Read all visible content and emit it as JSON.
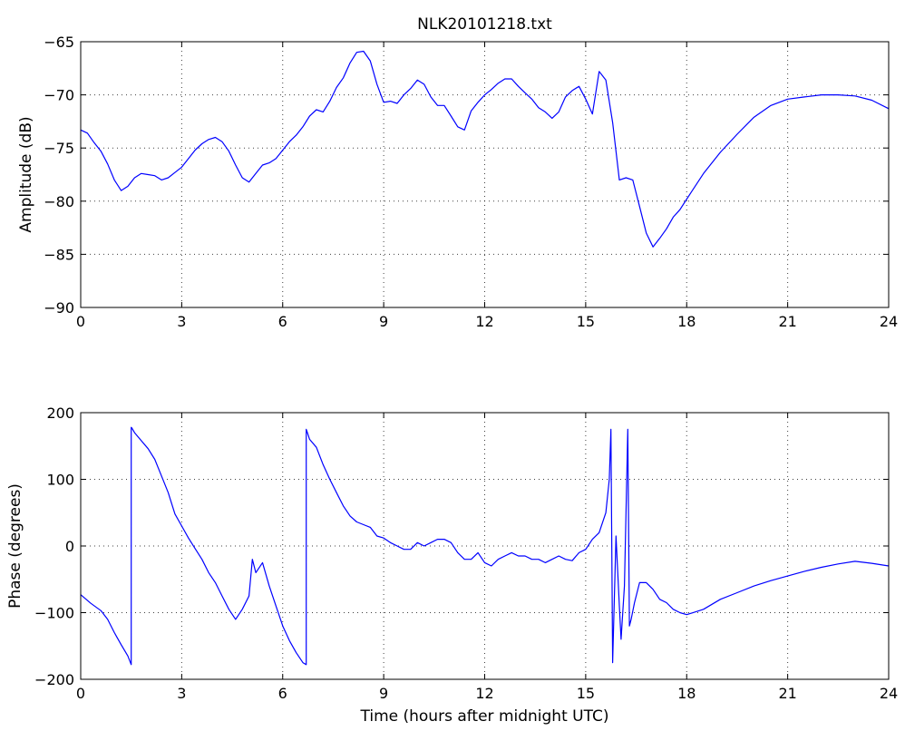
{
  "chart_data": [
    {
      "type": "line",
      "title": "NLK20101218.txt",
      "xlabel": "",
      "ylabel": "Amplitude (dB)",
      "xlim": [
        0,
        24
      ],
      "ylim": [
        -90,
        -65
      ],
      "xticks": [
        0,
        3,
        6,
        9,
        12,
        15,
        18,
        21,
        24
      ],
      "yticks": [
        -90,
        -85,
        -80,
        -75,
        -70,
        -65
      ],
      "grid": true,
      "color": "#0000ff",
      "series": [
        {
          "x": [
            0,
            0.2,
            0.4,
            0.6,
            0.8,
            1.0,
            1.2,
            1.4,
            1.6,
            1.8,
            2.0,
            2.2,
            2.4,
            2.6,
            2.8,
            3.0,
            3.2,
            3.4,
            3.6,
            3.8,
            4.0,
            4.2,
            4.4,
            4.6,
            4.8,
            5.0,
            5.2,
            5.4,
            5.6,
            5.8,
            6.0,
            6.2,
            6.4,
            6.6,
            6.8,
            7.0,
            7.2,
            7.4,
            7.6,
            7.8,
            8.0,
            8.2,
            8.4,
            8.6,
            8.8,
            9.0,
            9.2,
            9.4,
            9.6,
            9.8,
            10.0,
            10.2,
            10.4,
            10.6,
            10.8,
            11.0,
            11.2,
            11.4,
            11.6,
            11.8,
            12.0,
            12.2,
            12.4,
            12.6,
            12.8,
            13.0,
            13.2,
            13.4,
            13.6,
            13.8,
            14.0,
            14.2,
            14.4,
            14.6,
            14.8,
            15.0,
            15.2,
            15.4,
            15.6,
            15.8,
            16.0,
            16.2,
            16.4,
            16.6,
            16.8,
            17.0,
            17.2,
            17.4,
            17.6,
            17.8,
            18.0,
            18.5,
            19.0,
            19.5,
            20.0,
            20.5,
            21.0,
            21.5,
            22.0,
            22.5,
            23.0,
            23.5,
            24.0
          ],
          "y": [
            -73.3,
            -73.6,
            -74.5,
            -75.3,
            -76.5,
            -78.0,
            -79.0,
            -78.6,
            -77.8,
            -77.4,
            -77.5,
            -77.6,
            -78.0,
            -77.8,
            -77.3,
            -76.8,
            -76.0,
            -75.2,
            -74.6,
            -74.2,
            -74.0,
            -74.4,
            -75.3,
            -76.6,
            -77.8,
            -78.2,
            -77.4,
            -76.6,
            -76.4,
            -76.0,
            -75.2,
            -74.4,
            -73.8,
            -73.0,
            -72.0,
            -71.4,
            -71.6,
            -70.6,
            -69.3,
            -68.4,
            -67.0,
            -66.0,
            -65.9,
            -66.8,
            -69.0,
            -70.7,
            -70.6,
            -70.8,
            -70.0,
            -69.4,
            -68.6,
            -69.0,
            -70.2,
            -71.0,
            -71.0,
            -72.0,
            -73.0,
            -73.3,
            -71.5,
            -70.7,
            -70.0,
            -69.5,
            -68.9,
            -68.5,
            -68.5,
            -69.2,
            -69.8,
            -70.4,
            -71.2,
            -71.6,
            -72.2,
            -71.6,
            -70.2,
            -69.6,
            -69.2,
            -70.4,
            -71.8,
            -67.8,
            -68.6,
            -72.6,
            -78.0,
            -77.8,
            -78.0,
            -80.5,
            -83.0,
            -84.3,
            -83.5,
            -82.6,
            -81.5,
            -80.8,
            -79.8,
            -77.4,
            -75.4,
            -73.7,
            -72.1,
            -71.0,
            -70.4,
            -70.2,
            -70.0,
            -70.0,
            -70.1,
            -70.5,
            -71.3
          ]
        }
      ]
    },
    {
      "type": "line",
      "title": "",
      "xlabel": "Time (hours after midnight UTC)",
      "ylabel": "Phase (degrees)",
      "xlim": [
        0,
        24
      ],
      "ylim": [
        -200,
        200
      ],
      "xticks": [
        0,
        3,
        6,
        9,
        12,
        15,
        18,
        21,
        24
      ],
      "yticks": [
        -200,
        -100,
        0,
        100,
        200
      ],
      "grid": true,
      "color": "#0000ff",
      "series": [
        {
          "x": [
            0,
            0.3,
            0.6,
            0.8,
            1.0,
            1.2,
            1.4,
            1.5,
            1.5,
            1.52,
            1.6,
            1.8,
            2.0,
            2.2,
            2.4,
            2.6,
            2.8,
            3.0,
            3.2,
            3.4,
            3.6,
            3.8,
            4.0,
            4.2,
            4.4,
            4.6,
            4.8,
            5.0,
            5.1,
            5.2,
            5.4,
            5.6,
            5.8,
            6.0,
            6.2,
            6.4,
            6.6,
            6.7,
            6.7,
            6.72,
            6.8,
            7.0,
            7.2,
            7.4,
            7.6,
            7.8,
            8.0,
            8.2,
            8.4,
            8.6,
            8.8,
            9.0,
            9.2,
            9.4,
            9.6,
            9.8,
            10.0,
            10.2,
            10.4,
            10.6,
            10.8,
            11.0,
            11.2,
            11.4,
            11.6,
            11.8,
            12.0,
            12.2,
            12.4,
            12.6,
            12.8,
            13.0,
            13.2,
            13.4,
            13.6,
            13.8,
            14.0,
            14.2,
            14.4,
            14.6,
            14.8,
            15.0,
            15.2,
            15.4,
            15.6,
            15.7,
            15.75,
            15.8,
            15.9,
            16.0,
            16.05,
            16.15,
            16.25,
            16.3,
            16.35,
            16.45,
            16.6,
            16.8,
            17.0,
            17.2,
            17.4,
            17.6,
            17.8,
            18.0,
            18.5,
            19.0,
            19.5,
            20.0,
            20.5,
            21.0,
            21.5,
            22.0,
            22.5,
            23.0,
            23.5,
            24.0
          ],
          "y": [
            -73,
            -86,
            -97,
            -110,
            -130,
            -148,
            -165,
            -178,
            178,
            177,
            170,
            158,
            146,
            130,
            105,
            80,
            48,
            30,
            12,
            -4,
            -20,
            -40,
            -55,
            -75,
            -95,
            -110,
            -95,
            -75,
            -20,
            -40,
            -25,
            -60,
            -90,
            -120,
            -142,
            -160,
            -175,
            -178,
            175,
            172,
            160,
            148,
            122,
            100,
            80,
            60,
            45,
            36,
            32,
            28,
            15,
            12,
            5,
            0,
            -5,
            -5,
            5,
            0,
            5,
            10,
            10,
            5,
            -10,
            -20,
            -20,
            -10,
            -25,
            -30,
            -20,
            -15,
            -10,
            -15,
            -15,
            -20,
            -20,
            -25,
            -20,
            -15,
            -20,
            -22,
            -10,
            -5,
            10,
            20,
            50,
            100,
            175,
            -175,
            15,
            -90,
            -140,
            -60,
            175,
            -120,
            -110,
            -85,
            -55,
            -55,
            -65,
            -80,
            -85,
            -95,
            -100,
            -103,
            -95,
            -80,
            -70,
            -60,
            -52,
            -45,
            -38,
            -32,
            -27,
            -23,
            -26,
            -30
          ]
        }
      ]
    }
  ]
}
